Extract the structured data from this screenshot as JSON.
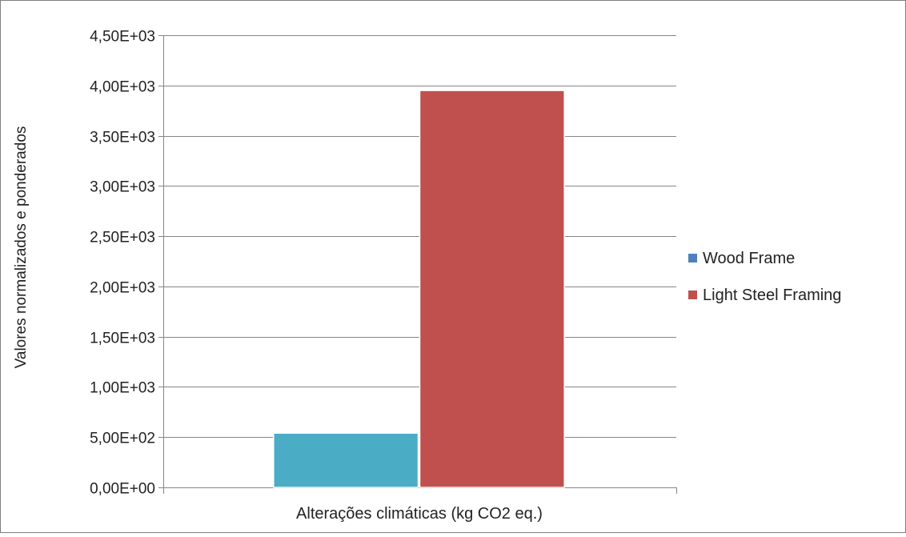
{
  "chart_data": {
    "type": "bar",
    "title": "",
    "xlabel": "",
    "ylabel": "Valores normalizados e ponderados",
    "categories": [
      "Alterações climáticas (kg CO2 eq.)"
    ],
    "series": [
      {
        "name": "Wood Frame",
        "values": [
          540
        ],
        "color": "#4bacc6",
        "legend_color": "#4f81bd"
      },
      {
        "name": "Light Steel Framing",
        "values": [
          3950
        ],
        "color": "#c0504d",
        "legend_color": "#c0504d"
      }
    ],
    "ylim": [
      0,
      4500
    ],
    "yticks": [
      0,
      500,
      1000,
      1500,
      2000,
      2500,
      3000,
      3500,
      4000,
      4500
    ],
    "ytick_labels": [
      "0,00E+00",
      "5,00E+02",
      "1,00E+03",
      "1,50E+03",
      "2,00E+03",
      "2,50E+03",
      "3,00E+03",
      "3,50E+03",
      "4,00E+03",
      "4,50E+03"
    ],
    "grid": true,
    "legend_position": "right"
  }
}
